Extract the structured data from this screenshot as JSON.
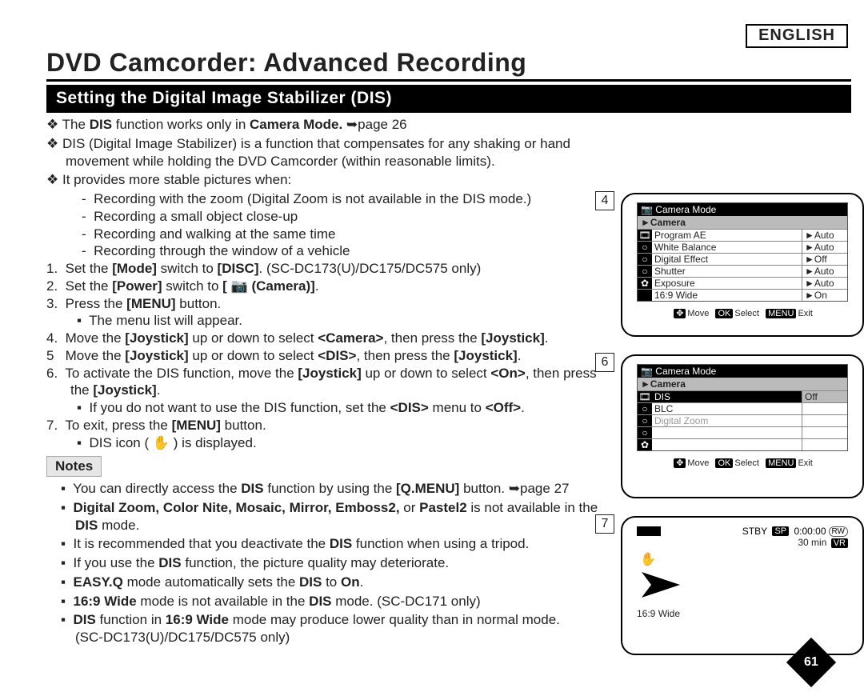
{
  "language": "ENGLISH",
  "title": "DVD Camcorder: Advanced Recording",
  "section_bar": "Setting the Digital Image Stabilizer (DIS)",
  "dia1_a": "The ",
  "dia1_b": "DIS",
  "dia1_c": " function works only in ",
  "dia1_d": "Camera Mode.",
  "dia1_e": " ➥page 26",
  "dia2": "DIS (Digital Image Stabilizer) is a function that compensates for any shaking or hand movement while holding the DVD Camcorder (within reasonable limits).",
  "dia3": "It provides more stable pictures when:",
  "dash1": "Recording with the zoom (Digital Zoom is not available in the DIS mode.)",
  "dash2": "Recording a small object close-up",
  "dash3": "Recording and walking at the same time",
  "dash4": "Recording through the window of a vehicle",
  "n1_a": "Set the ",
  "n1_b": "[Mode]",
  "n1_c": " switch to ",
  "n1_d": "[DISC]",
  "n1_e": ". (SC-DC173(U)/DC175/DC575 only)",
  "n2_a": "Set the ",
  "n2_b": "[Power]",
  "n2_c": " switch to ",
  "n2_d": "[ 📷 (Camera)]",
  "n3_a": "Press the ",
  "n3_b": "[MENU]",
  "n3_c": " button.",
  "sq3": "The menu list will appear.",
  "n4_a": "Move the ",
  "n4_b": "[Joystick]",
  "n4_c": " up or down to select ",
  "n4_d": "<Camera>",
  "n4_e": ", then press the ",
  "n4_f": "[Joystick]",
  "n5_a": "Move the ",
  "n5_b": "[Joystick]",
  "n5_c": " up or down to select ",
  "n5_d": "<DIS>",
  "n5_e": ", then press the ",
  "n5_f": "[Joystick]",
  "n6_a": "To activate the DIS function, move the ",
  "n6_b": "[Joystick]",
  "n6_c": " up or down to select ",
  "n6_d": "<On>",
  "n6_e": ", then press the ",
  "n6_f": "[Joystick]",
  "sq6_a": "If you do not want to use the DIS function, set the ",
  "sq6_b": "<DIS>",
  "sq6_c": " menu to ",
  "sq6_d": "<Off>",
  "n7_a": "To exit, press the ",
  "n7_b": "[MENU]",
  "n7_c": " button.",
  "sq7_a": "DIS icon ( ",
  "sq7_b": "✋",
  "sq7_c": " ) is displayed.",
  "notes_label": "Notes",
  "note1_a": "You can directly access the ",
  "note1_b": "DIS",
  "note1_c": " function by using the ",
  "note1_d": "[Q.MENU]",
  "note1_e": " button. ➥page 27",
  "note2_a": "Digital Zoom, Color Nite, Mosaic, Mirror, Emboss2,",
  "note2_b": " or ",
  "note2_c": "Pastel2",
  "note2_d": " is not available in the ",
  "note2_e": "DIS",
  "note2_f": " mode.",
  "note3_a": "It is recommended that you deactivate the ",
  "note3_b": "DIS",
  "note3_c": " function when using a tripod.",
  "note4_a": "If you use the ",
  "note4_b": "DIS",
  "note4_c": " function, the picture quality may deteriorate.",
  "note5_a": "EASY.Q",
  "note5_b": " mode automatically sets the ",
  "note5_c": "DIS",
  "note5_d": " to ",
  "note5_e": "On",
  "note6_a": "16:9 Wide",
  "note6_b": " mode is not available in the ",
  "note6_c": "DIS",
  "note6_d": " mode. (SC-DC171 only)",
  "note7_a": "DIS",
  "note7_b": " function in ",
  "note7_c": "16:9 Wide",
  "note7_d": " mode may produce lower quality than in normal mode.",
  "note7_e": "(SC-DC173(U)/DC175/DC575 only)",
  "panel4": {
    "num": "4",
    "head": "Camera Mode",
    "camrow": "►Camera",
    "rows": [
      {
        "icon": "🎞",
        "lab": "Program AE",
        "val": "►Auto"
      },
      {
        "icon": "○",
        "lab": "White Balance",
        "val": "►Auto"
      },
      {
        "icon": "○",
        "lab": "Digital Effect",
        "val": "►Off"
      },
      {
        "icon": "○",
        "lab": "Shutter",
        "val": "►Auto"
      },
      {
        "icon": "✿",
        "lab": "Exposure",
        "val": "►Auto"
      },
      {
        "icon": "",
        "lab": "16:9 Wide",
        "val": "►On"
      }
    ],
    "hint_move": "Move",
    "hint_select": "Select",
    "hint_exit": "Exit",
    "hint_move_tag": "✥",
    "hint_select_tag": "OK",
    "hint_exit_tag": "MENU"
  },
  "panel6": {
    "num": "6",
    "head": "Camera Mode",
    "camrow": "►Camera",
    "rows": [
      {
        "icon": "🎞",
        "lab": "DIS",
        "val": "Off",
        "sel": true
      },
      {
        "icon": "○",
        "lab": "BLC",
        "val": ""
      },
      {
        "icon": "○",
        "lab": "Digital Zoom",
        "val": "",
        "dim": true
      },
      {
        "icon": "○",
        "lab": "",
        "val": ""
      },
      {
        "icon": "✿",
        "lab": "",
        "val": ""
      }
    ],
    "hint_move": "Move",
    "hint_select": "Select",
    "hint_exit": "Exit",
    "hint_move_tag": "✥",
    "hint_select_tag": "OK",
    "hint_exit_tag": "MENU"
  },
  "panel7": {
    "num": "7",
    "stby": "STBY",
    "sp_tag": "SP",
    "time": "0:00:00",
    "time_tag": "RW",
    "remain": "30 min",
    "remain_tag": "VR",
    "dis_icon": "✋",
    "wide": "16:9 Wide"
  },
  "page_num": "61"
}
